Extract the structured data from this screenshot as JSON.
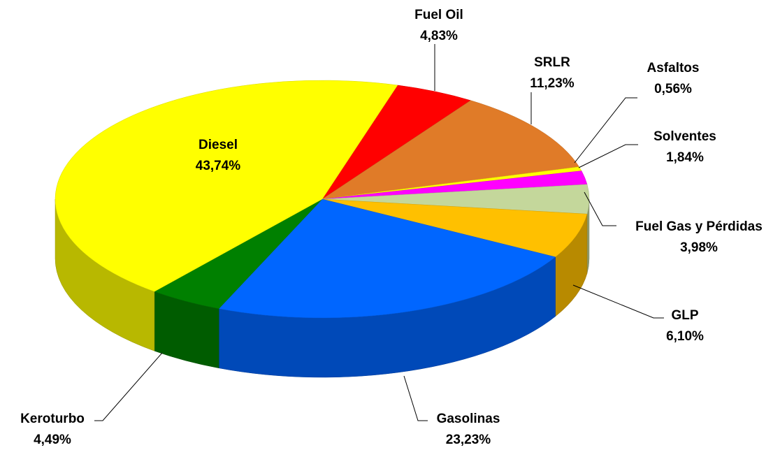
{
  "chart_data": {
    "type": "pie",
    "categories": [
      "Fuel Oil",
      "SRLR",
      "Asfaltos",
      "Solventes",
      "Fuel Gas y Pérdidas",
      "GLP",
      "Gasolinas",
      "Keroturbo",
      "Diesel"
    ],
    "values": [
      4.83,
      11.23,
      0.56,
      1.84,
      3.98,
      6.1,
      23.23,
      4.49,
      43.74
    ],
    "value_labels": [
      "4,83%",
      "11,23%",
      "0,56%",
      "1,84%",
      "3,98%",
      "6,10%",
      "23,23%",
      "4,49%",
      "43,74%"
    ],
    "colors": [
      "#ff0000",
      "#e07b28",
      "#ffff00",
      "#ff00ff",
      "#c4d79b",
      "#ffc000",
      "#0066ff",
      "#008000",
      "#ffff00"
    ]
  }
}
